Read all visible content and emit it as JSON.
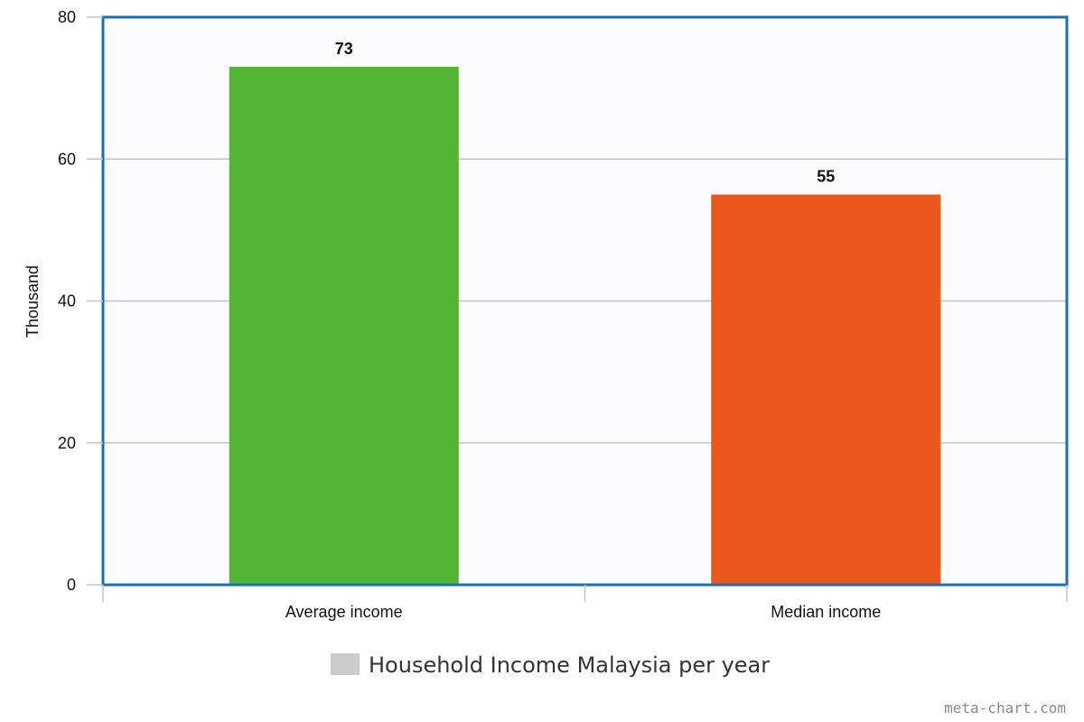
{
  "chart_data": {
    "type": "bar",
    "categories": [
      "Average income",
      "Median income"
    ],
    "values": [
      73,
      55
    ],
    "bar_colors": [
      "#52b435",
      "#ea581e"
    ],
    "data_labels": [
      "73",
      "55"
    ],
    "xlabel": "",
    "ylabel": "Thousand",
    "ylim": [
      0,
      80
    ],
    "yticks": [
      0,
      20,
      40,
      60,
      80
    ],
    "ytick_labels": [
      "0",
      "20",
      "40",
      "60",
      "80"
    ],
    "grid": true,
    "legend": {
      "position": "bottom-center",
      "entries": [
        {
          "label": "Household Income Malaysia per year",
          "color": "#cccccc"
        }
      ]
    },
    "frame_color": "#1a6fb5",
    "watermark": "meta-chart.com"
  }
}
